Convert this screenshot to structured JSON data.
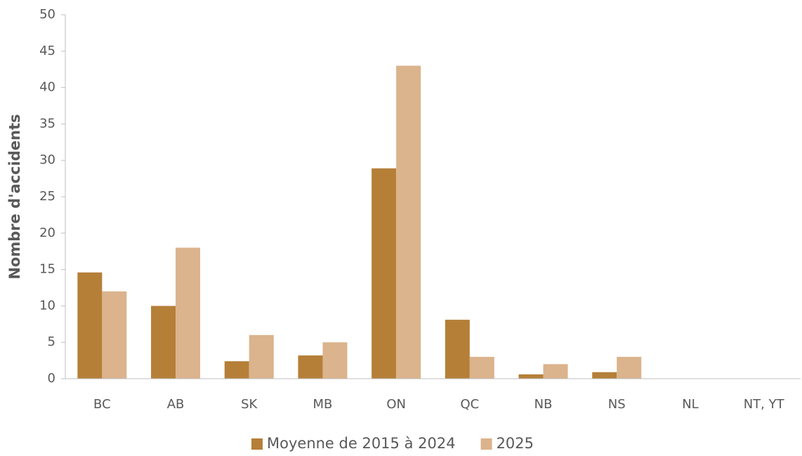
{
  "chart_data": {
    "type": "bar",
    "y_label": "Nombre d'accidents",
    "categories": [
      "BC",
      "AB",
      "SK",
      "MB",
      "ON",
      "QC",
      "NB",
      "NS",
      "NL",
      "NT, YT"
    ],
    "series": [
      {
        "name": "Moyenne de 2015 à 2024",
        "color": "#b57f38",
        "values": [
          14.6,
          10,
          2.4,
          3.2,
          28.9,
          8.1,
          0.6,
          0.9,
          0,
          0
        ]
      },
      {
        "name": "2025",
        "color": "#dbb38c",
        "values": [
          12,
          18,
          6,
          5,
          43,
          3,
          2,
          3,
          0,
          0
        ]
      }
    ],
    "ylim": [
      0,
      50
    ],
    "yticks": [
      0,
      5,
      10,
      15,
      20,
      25,
      30,
      35,
      40,
      45,
      50
    ],
    "legend": "bottom"
  }
}
